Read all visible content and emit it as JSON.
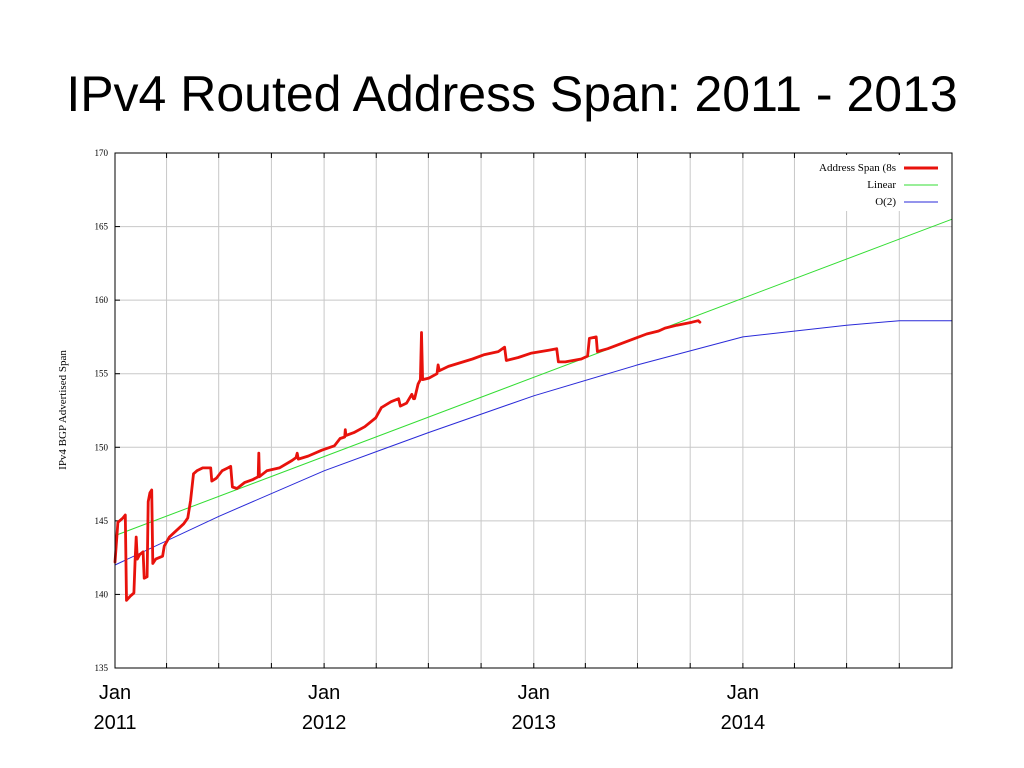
{
  "slide": {
    "title": "IPv4 Routed Address Span: 2011 - 2013"
  },
  "chart_data": {
    "type": "line",
    "title": "IPv4 Routed Address Span: 2011 - 2013",
    "ylabel": "IPv4 BGP Advertised Span",
    "xlabel": "",
    "ylim": [
      135,
      170
    ],
    "xlim": [
      "2011-01",
      "2015-01"
    ],
    "yticks": [
      135,
      140,
      145,
      150,
      155,
      160,
      165,
      170
    ],
    "x_tick_labels": [
      {
        "month": "Jan",
        "year": "2011",
        "x": "2011-01"
      },
      {
        "month": "Jan",
        "year": "2012",
        "x": "2012-01"
      },
      {
        "month": "Jan",
        "year": "2013",
        "x": "2013-01"
      },
      {
        "month": "Jan",
        "year": "2014",
        "x": "2014-01"
      }
    ],
    "x_minor_ticks": [
      "2011-04",
      "2011-07",
      "2011-10",
      "2012-04",
      "2012-07",
      "2012-10",
      "2013-04",
      "2013-07",
      "2013-10",
      "2014-04",
      "2014-07",
      "2014-10"
    ],
    "grid": true,
    "legend_position": "top-right",
    "series": [
      {
        "name": "Address Span (8s",
        "color": "#e8120c",
        "style": "thick",
        "points": [
          [
            "2011-01-01",
            142.2
          ],
          [
            "2011-01-06",
            144.9
          ],
          [
            "2011-01-15",
            145.2
          ],
          [
            "2011-01-19",
            145.4
          ],
          [
            "2011-01-21",
            139.6
          ],
          [
            "2011-01-28",
            139.9
          ],
          [
            "2011-02-03",
            140.1
          ],
          [
            "2011-02-05",
            142.3
          ],
          [
            "2011-02-07",
            143.9
          ],
          [
            "2011-02-09",
            142.4
          ],
          [
            "2011-02-13",
            142.7
          ],
          [
            "2011-02-19",
            142.9
          ],
          [
            "2011-02-21",
            141.1
          ],
          [
            "2011-02-26",
            141.2
          ],
          [
            "2011-02-28",
            146.3
          ],
          [
            "2011-03-03",
            146.9
          ],
          [
            "2011-03-06",
            147.1
          ],
          [
            "2011-03-08",
            142.1
          ],
          [
            "2011-03-13",
            142.4
          ],
          [
            "2011-03-25",
            142.6
          ],
          [
            "2011-03-28",
            143.3
          ],
          [
            "2011-04-06",
            143.9
          ],
          [
            "2011-04-17",
            144.3
          ],
          [
            "2011-05-01",
            144.8
          ],
          [
            "2011-05-08",
            145.2
          ],
          [
            "2011-05-13",
            146.4
          ],
          [
            "2011-05-18",
            148.2
          ],
          [
            "2011-05-24",
            148.4
          ],
          [
            "2011-06-03",
            148.6
          ],
          [
            "2011-06-17",
            148.6
          ],
          [
            "2011-06-19",
            147.7
          ],
          [
            "2011-06-27",
            147.9
          ],
          [
            "2011-07-07",
            148.4
          ],
          [
            "2011-07-17",
            148.6
          ],
          [
            "2011-07-22",
            148.7
          ],
          [
            "2011-07-25",
            147.3
          ],
          [
            "2011-08-02",
            147.2
          ],
          [
            "2011-08-15",
            147.6
          ],
          [
            "2011-08-29",
            147.8
          ],
          [
            "2011-09-08",
            148.0
          ],
          [
            "2011-09-09",
            149.6
          ],
          [
            "2011-09-10",
            148.0
          ],
          [
            "2011-09-23",
            148.4
          ],
          [
            "2011-10-15",
            148.6
          ],
          [
            "2011-11-06",
            149.1
          ],
          [
            "2011-11-13",
            149.3
          ],
          [
            "2011-11-15",
            149.6
          ],
          [
            "2011-11-17",
            149.2
          ],
          [
            "2011-12-04",
            149.4
          ],
          [
            "2011-12-28",
            149.8
          ],
          [
            "2012-01-19",
            150.1
          ],
          [
            "2012-01-29",
            150.6
          ],
          [
            "2012-02-06",
            150.7
          ],
          [
            "2012-02-07",
            151.2
          ],
          [
            "2012-02-08",
            150.8
          ],
          [
            "2012-02-22",
            151.0
          ],
          [
            "2012-03-12",
            151.4
          ],
          [
            "2012-03-31",
            152.0
          ],
          [
            "2012-04-10",
            152.7
          ],
          [
            "2012-04-27",
            153.1
          ],
          [
            "2012-05-10",
            153.3
          ],
          [
            "2012-05-13",
            152.8
          ],
          [
            "2012-05-24",
            153.0
          ],
          [
            "2012-06-02",
            153.6
          ],
          [
            "2012-06-05",
            153.3
          ],
          [
            "2012-06-07",
            153.3
          ],
          [
            "2012-06-13",
            154.3
          ],
          [
            "2012-06-17",
            154.6
          ],
          [
            "2012-06-19",
            157.8
          ],
          [
            "2012-06-21",
            154.6
          ],
          [
            "2012-07-02",
            154.7
          ],
          [
            "2012-07-16",
            155.0
          ],
          [
            "2012-07-18",
            155.6
          ],
          [
            "2012-07-20",
            155.2
          ],
          [
            "2012-08-05",
            155.5
          ],
          [
            "2012-09-16",
            156.0
          ],
          [
            "2012-10-07",
            156.3
          ],
          [
            "2012-10-31",
            156.5
          ],
          [
            "2012-11-11",
            156.8
          ],
          [
            "2012-11-14",
            155.9
          ],
          [
            "2012-12-05",
            156.1
          ],
          [
            "2012-12-28",
            156.4
          ],
          [
            "2013-01-27",
            156.6
          ],
          [
            "2013-02-10",
            156.7
          ],
          [
            "2013-02-13",
            155.8
          ],
          [
            "2013-02-25",
            155.8
          ],
          [
            "2013-03-25",
            156.0
          ],
          [
            "2013-04-05",
            156.2
          ],
          [
            "2013-04-08",
            157.4
          ],
          [
            "2013-04-20",
            157.5
          ],
          [
            "2013-04-22",
            156.5
          ],
          [
            "2013-05-10",
            156.7
          ],
          [
            "2013-06-13",
            157.2
          ],
          [
            "2013-07-17",
            157.7
          ],
          [
            "2013-08-07",
            157.9
          ],
          [
            "2013-08-18",
            158.1
          ],
          [
            "2013-09-08",
            158.3
          ],
          [
            "2013-10-04",
            158.5
          ],
          [
            "2013-10-15",
            158.6
          ],
          [
            "2013-10-18",
            158.5
          ]
        ]
      },
      {
        "name": "Linear",
        "color": "#33dd33",
        "style": "thin",
        "points": [
          [
            "2011-01-01",
            144.0
          ],
          [
            "2015-01-01",
            165.5
          ]
        ]
      },
      {
        "name": "O(2)",
        "color": "#2a2ad8",
        "style": "thin",
        "points": [
          [
            "2011-01-01",
            142.0
          ],
          [
            "2011-07-01",
            145.3
          ],
          [
            "2012-01-01",
            148.4
          ],
          [
            "2012-07-01",
            151.0
          ],
          [
            "2013-01-01",
            153.5
          ],
          [
            "2013-07-01",
            155.6
          ],
          [
            "2014-01-01",
            157.5
          ],
          [
            "2014-07-01",
            158.3
          ],
          [
            "2014-10-01",
            158.6
          ],
          [
            "2015-01-01",
            158.6
          ]
        ]
      }
    ]
  }
}
